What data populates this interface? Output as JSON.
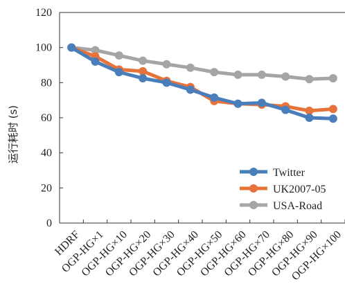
{
  "chart_data": {
    "type": "line",
    "title": "",
    "xlabel": "",
    "ylabel": "运行耗时 (s)",
    "ylim": [
      0,
      120
    ],
    "yticks": [
      0,
      20,
      40,
      60,
      80,
      100,
      120
    ],
    "grid": false,
    "legend_position": "bottom-right",
    "categories": [
      "HDRF",
      "OGP-HG×1",
      "OGP-HG×10",
      "OGP-HG×20",
      "OGP-HG×30",
      "OGP-HG×40",
      "OGP-HG×50",
      "OGP-HG×60",
      "OGP-HG×70",
      "OGP-HG×80",
      "OGP-HG×90",
      "OGP-HG×100"
    ],
    "series": [
      {
        "name": "Twitter",
        "color": "#4a7ebb",
        "values": [
          100,
          92,
          86,
          82.5,
          80,
          76,
          71.5,
          68,
          68.5,
          64.5,
          60,
          59.5
        ]
      },
      {
        "name": "UK2007-05",
        "color": "#e8733a",
        "values": [
          100,
          95,
          87.5,
          86.5,
          81,
          77.5,
          69.5,
          68,
          67.5,
          66.5,
          64,
          65
        ]
      },
      {
        "name": "USA-Road",
        "color": "#a5a5a5",
        "values": [
          100,
          98.5,
          95.5,
          92.5,
          90.5,
          88.5,
          86,
          84.5,
          84.5,
          83.5,
          82,
          82.5
        ]
      }
    ]
  }
}
